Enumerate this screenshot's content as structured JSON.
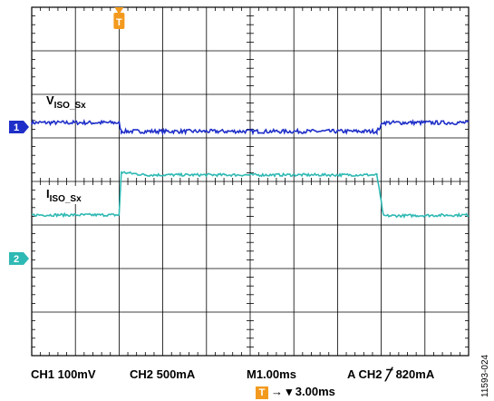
{
  "chart_data": {
    "type": "line",
    "x_unit": "ms",
    "time_per_div": 1.0,
    "divisions": {
      "horizontal": 10,
      "vertical": 8
    },
    "series": [
      {
        "name": "V",
        "channel": 1,
        "marker": "1",
        "label_main": "V",
        "label_sub": "ISO_Sx",
        "color": "#1F2FC8",
        "scale": "100mV/div",
        "ground_div": 1.25,
        "points": [
          [
            0,
            0.1
          ],
          [
            2.0,
            0.1
          ],
          [
            2.05,
            -0.1
          ],
          [
            7.9,
            -0.1
          ],
          [
            8.05,
            0.1
          ],
          [
            10,
            0.1
          ]
        ]
      },
      {
        "name": "I",
        "channel": 2,
        "marker": "2",
        "label_main": "I",
        "label_sub": "ISO_Sx",
        "color": "#2FB9B4",
        "scale": "500mA/div",
        "ground_div": -1.77,
        "points": [
          [
            0,
            1.0
          ],
          [
            2.0,
            1.0
          ],
          [
            2.05,
            1.98
          ],
          [
            2.6,
            1.92
          ],
          [
            7.9,
            1.92
          ],
          [
            8.05,
            0.98
          ],
          [
            10,
            1.0
          ]
        ]
      }
    ],
    "trigger": {
      "marker": "T",
      "position_ms": 2.0,
      "source": "CH2",
      "level": "820mA"
    }
  },
  "status": {
    "ch1": "CH1  100mV",
    "ch2": "CH2  500mA",
    "timebase": "M1.00ms",
    "trigger": "A  CH2  ╱̅  820mA",
    "trigger_offset": "3.00ms",
    "trigger_arrow": "→ ▾"
  },
  "figure_id": "11593-024",
  "colors": {
    "trigger": "#F39A1E",
    "grid": "#000000"
  }
}
